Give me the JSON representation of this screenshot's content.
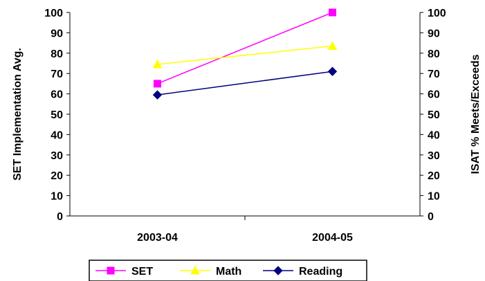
{
  "chart_data": {
    "type": "line",
    "categories": [
      "2003-04",
      "2004-05"
    ],
    "series": [
      {
        "name": "SET",
        "values": [
          65,
          100
        ],
        "color": "#ff00ff",
        "marker": "square"
      },
      {
        "name": "Math",
        "values": [
          74.5,
          83.5
        ],
        "color": "#ffff00",
        "marker": "triangle"
      },
      {
        "name": "Reading",
        "values": [
          59.5,
          71
        ],
        "color": "#000080",
        "marker": "diamond"
      }
    ],
    "ylabel": "SET Implementation Avg.",
    "y2label": "ISAT % Meets/Exceeds",
    "ylim": [
      0,
      100
    ],
    "y2lim": [
      0,
      100
    ],
    "yticks": [
      "0",
      "10",
      "20",
      "30",
      "40",
      "50",
      "60",
      "70",
      "80",
      "90",
      "100"
    ],
    "y2ticks": [
      "0",
      "10",
      "20",
      "30",
      "40",
      "50",
      "60",
      "70",
      "80",
      "90",
      "100"
    ],
    "grid": false,
    "legend_position": "bottom"
  }
}
